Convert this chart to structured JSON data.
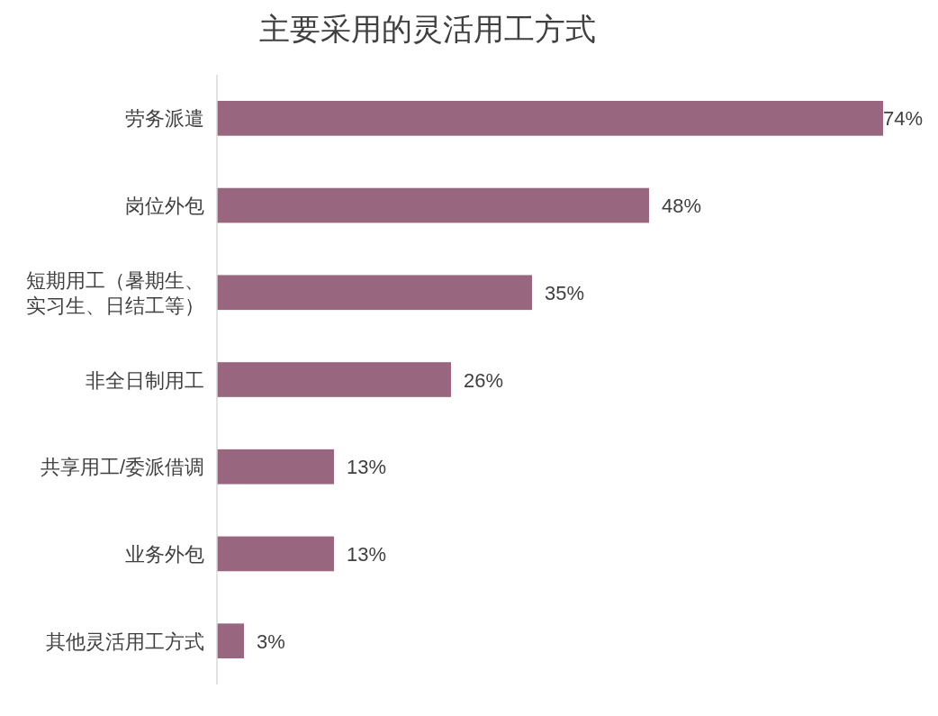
{
  "chart_data": {
    "type": "bar",
    "orientation": "horizontal",
    "title": "主要采用的灵活用工方式",
    "categories": [
      "劳务派遣",
      "岗位外包",
      "短期用工（暑期生、实习生、日结工等）",
      "非全日制用工",
      "共享用工/委派借调",
      "业务外包",
      "其他灵活用工方式"
    ],
    "values": [
      74,
      48,
      35,
      26,
      13,
      13,
      3
    ],
    "value_labels": [
      "74%",
      "48%",
      "35%",
      "26%",
      "13%",
      "13%",
      "3%"
    ],
    "color": "#98677f"
  }
}
